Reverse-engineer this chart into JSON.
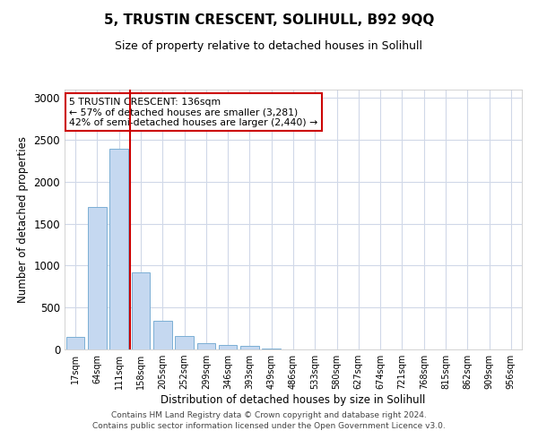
{
  "title": "5, TRUSTIN CRESCENT, SOLIHULL, B92 9QQ",
  "subtitle": "Size of property relative to detached houses in Solihull",
  "xlabel": "Distribution of detached houses by size in Solihull",
  "ylabel": "Number of detached properties",
  "categories": [
    "17sqm",
    "64sqm",
    "111sqm",
    "158sqm",
    "205sqm",
    "252sqm",
    "299sqm",
    "346sqm",
    "393sqm",
    "439sqm",
    "486sqm",
    "533sqm",
    "580sqm",
    "627sqm",
    "674sqm",
    "721sqm",
    "768sqm",
    "815sqm",
    "862sqm",
    "909sqm",
    "956sqm"
  ],
  "values": [
    150,
    1700,
    2390,
    920,
    345,
    160,
    80,
    50,
    40,
    15,
    5,
    0,
    0,
    0,
    0,
    0,
    0,
    0,
    0,
    0,
    0
  ],
  "bar_color": "#c5d8f0",
  "bar_edge_color": "#7bafd4",
  "property_line_x": 2.5,
  "annotation_text": "5 TRUSTIN CRESCENT: 136sqm\n← 57% of detached houses are smaller (3,281)\n42% of semi-detached houses are larger (2,440) →",
  "annotation_box_color": "#ffffff",
  "annotation_box_edge_color": "#cc0000",
  "vline_color": "#cc0000",
  "ylim": [
    0,
    3100
  ],
  "yticks": [
    0,
    500,
    1000,
    1500,
    2000,
    2500,
    3000
  ],
  "background_color": "#ffffff",
  "grid_color": "#d0d8e8",
  "footer_line1": "Contains HM Land Registry data © Crown copyright and database right 2024.",
  "footer_line2": "Contains public sector information licensed under the Open Government Licence v3.0."
}
